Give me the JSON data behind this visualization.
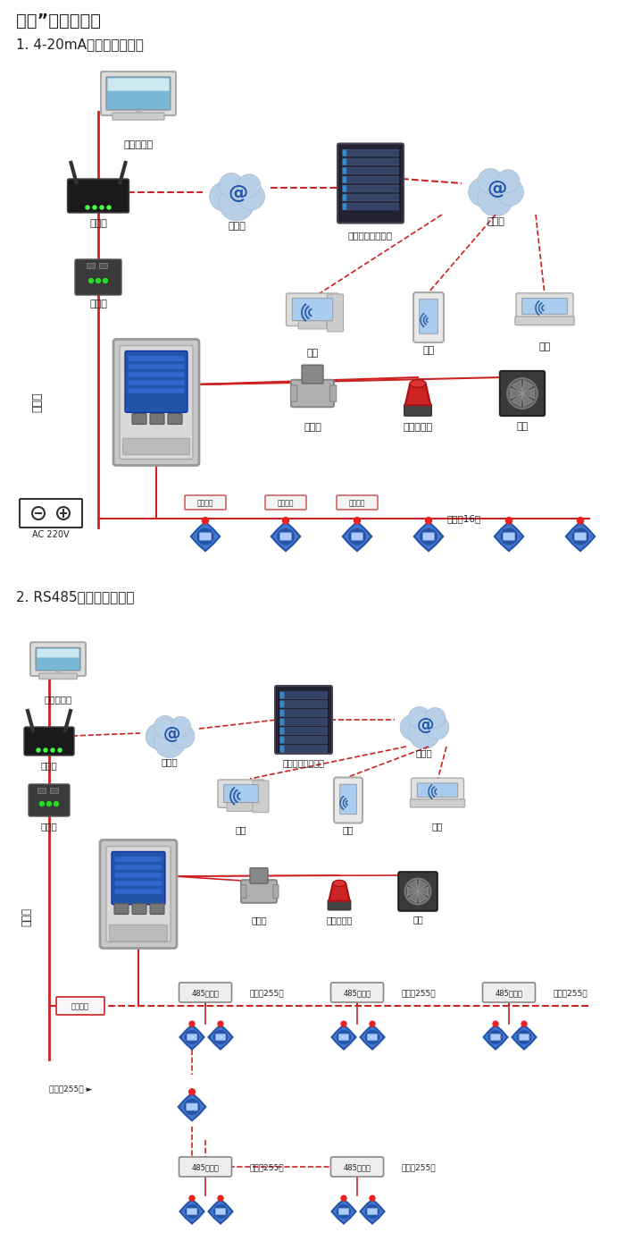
{
  "title1": "大众”系列报警器",
  "section1": "1. 4-20mA信号连接系统图",
  "section2": "2. RS485信号连接系统图",
  "bg_color": "#ffffff",
  "red": "#cc2222",
  "dark": "#222222",
  "gray": "#888888",
  "blue": "#3366aa",
  "cloud_color": "#b8cfe8",
  "s1": {
    "computer": "单机版电脑",
    "router": "路由器",
    "internet1": "互联网",
    "server_label": "安帖尔网络服务器",
    "internet2": "互联网",
    "pc": "电脑",
    "phone": "手机",
    "terminal": "终端",
    "converter": "转换器",
    "comm": "通讯线",
    "solenoid": "电磁阀",
    "alarm": "声光报警器",
    "fan": "风机",
    "ac": "AC 220V",
    "sig1": "信号输出",
    "sig2": "信号输出",
    "sig3": "信号输出",
    "connect16": "可连接16个"
  },
  "s2": {
    "computer": "单机版电脑",
    "router": "路由器",
    "internet1": "互联网",
    "server_label": "安帖尔网络服务器",
    "internet2": "互联网",
    "pc": "电脑",
    "phone": "手机",
    "terminal": "终端",
    "converter": "转换器",
    "comm": "通讯线",
    "solenoid": "电磁阀",
    "alarm": "声光报警器",
    "fan": "风机",
    "repeater": "485中继器",
    "signal_out": "信号输出",
    "connect255": "可连接255台"
  }
}
